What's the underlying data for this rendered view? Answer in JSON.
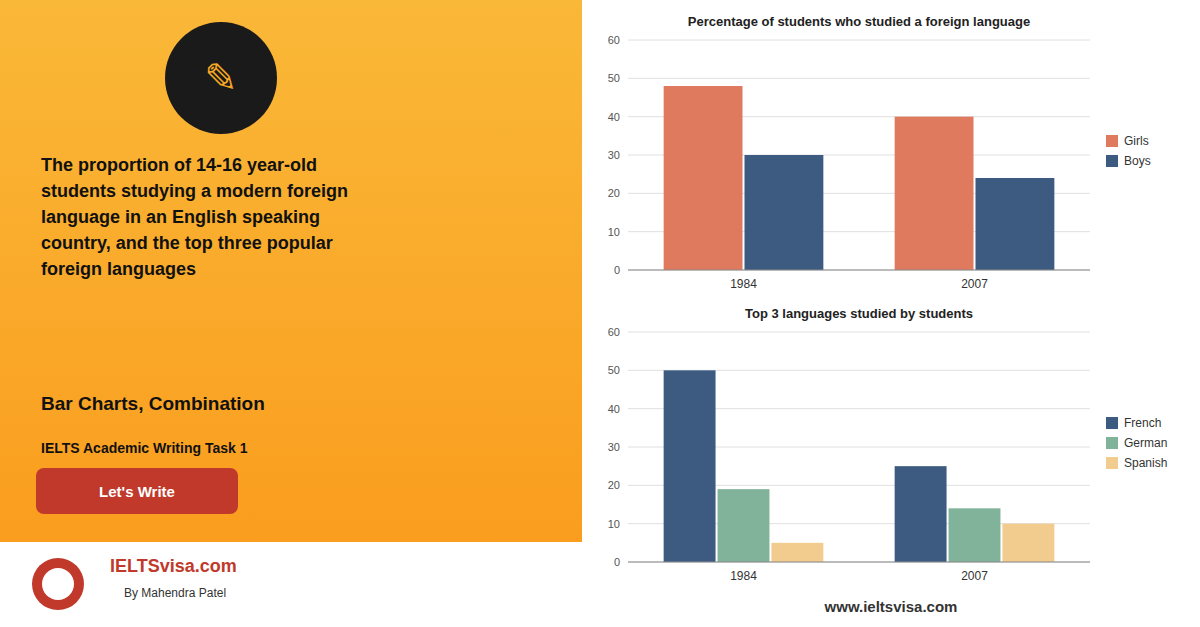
{
  "title": "The proportion of 14-16 year-old\nstudents studying a modern foreign\nlanguage in an English speaking\ncountry, and the top three popular\nforeign languages",
  "subtitle": "Bar Charts, Combination",
  "annotations": [
    "✎",
    "IELTS Academic Writing Task 1",
    "Let's Write",
    "IELTS",
    "visa.com",
    "By Mahendra Patel",
    "www.ieltsvisa.com"
  ],
  "chart_data": [
    {
      "type": "bar",
      "title": "Percentage of students who studied a foreign language",
      "categories": [
        "1984",
        "2007"
      ],
      "series": [
        {
          "name": "Girls",
          "color": "#e07a5f",
          "values": [
            48,
            40
          ]
        },
        {
          "name": "Boys",
          "color": "#3d5a80",
          "values": [
            30,
            24
          ]
        }
      ],
      "ylim": [
        0,
        60
      ],
      "yticks": [
        0,
        10,
        20,
        30,
        40,
        50,
        60
      ],
      "grid": true,
      "legend": "right"
    },
    {
      "type": "bar",
      "title": "Top 3 languages studied by students",
      "categories": [
        "1984",
        "2007"
      ],
      "series": [
        {
          "name": "French",
          "color": "#3d5a80",
          "values": [
            50,
            25
          ]
        },
        {
          "name": "German",
          "color": "#81b29a",
          "values": [
            19,
            14
          ]
        },
        {
          "name": "Spanish",
          "color": "#f2cc8f",
          "values": [
            5,
            10
          ]
        }
      ],
      "ylim": [
        0,
        60
      ],
      "yticks": [
        0,
        10,
        20,
        30,
        40,
        50,
        60
      ],
      "grid": true,
      "legend": "right"
    }
  ]
}
